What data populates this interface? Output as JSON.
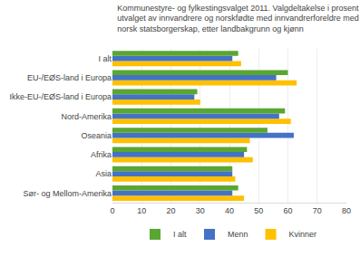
{
  "chart_data": {
    "type": "bar",
    "orientation": "horizontal",
    "title": "Kommunestyre- og fylkestingsvalget 2011. Valgdeltakelse i prosent i\nutvalget av innvandrere og norskfødte med innvandrerforeldre med\nnorsk statsborgerskap, etter landbakgrunn og kjønn",
    "categories": [
      "Sør- og Mellom-Amerika",
      "Asia",
      "Afrika",
      "Oseania",
      "Nord-Amerika",
      "Ikke-EU-/EØS-land i Europa",
      "EU-/EØS-land i Europa",
      "I alt"
    ],
    "series": [
      {
        "name": "I alt",
        "color": "#5AA632",
        "values": [
          43,
          41,
          46,
          53,
          59,
          29,
          60,
          43
        ]
      },
      {
        "name": "Menn",
        "color": "#4472C4",
        "values": [
          41,
          41,
          45,
          62,
          57,
          28,
          56,
          41
        ]
      },
      {
        "name": "Kvinner",
        "color": "#FFC000",
        "values": [
          45,
          42,
          48,
          47,
          61,
          30,
          63,
          44
        ]
      }
    ],
    "xlim": [
      0,
      80
    ],
    "xticks": [
      0,
      10,
      20,
      30,
      40,
      50,
      60,
      70,
      80
    ],
    "grid": true,
    "legend": "bottom"
  }
}
